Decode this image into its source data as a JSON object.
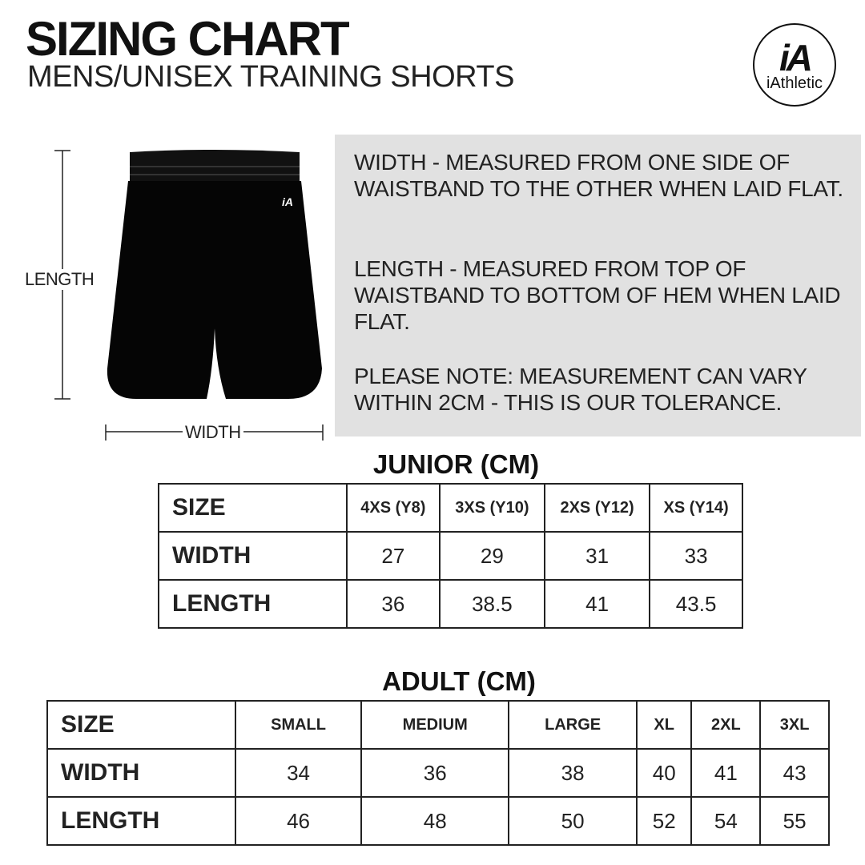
{
  "header": {
    "title": "SIZING CHART",
    "subtitle": "MENS/UNISEX TRAINING SHORTS"
  },
  "logo": {
    "mark": "iA",
    "text": "iAthletic"
  },
  "diagram": {
    "length_label": "LENGTH",
    "width_label": "WIDTH",
    "garment_color": "#000000"
  },
  "info": {
    "width_text": "WIDTH - MEASURED FROM ONE SIDE OF WAISTBAND TO THE OTHER WHEN LAID FLAT.",
    "length_text": "LENGTH - MEASURED FROM TOP OF WAISTBAND TO BOTTOM OF HEM WHEN LAID FLAT.",
    "note_text": "PLEASE NOTE: MEASUREMENT CAN VARY WITHIN 2CM - THIS IS OUR TOLERANCE."
  },
  "junior": {
    "title": "JUNIOR (CM)",
    "header": [
      "SIZE",
      "4XS (Y8)",
      "3XS (Y10)",
      "2XS (Y12)",
      "XS (Y14)"
    ],
    "rows": [
      [
        "WIDTH",
        "27",
        "29",
        "31",
        "33"
      ],
      [
        "LENGTH",
        "36",
        "38.5",
        "41",
        "43.5"
      ]
    ]
  },
  "adult": {
    "title": "ADULT (CM)",
    "header": [
      "SIZE",
      "SMALL",
      "MEDIUM",
      "LARGE",
      "XL",
      "2XL",
      "3XL"
    ],
    "rows": [
      [
        "WIDTH",
        "34",
        "36",
        "38",
        "40",
        "41",
        "43"
      ],
      [
        "LENGTH",
        "46",
        "48",
        "50",
        "52",
        "54",
        "55"
      ]
    ]
  }
}
